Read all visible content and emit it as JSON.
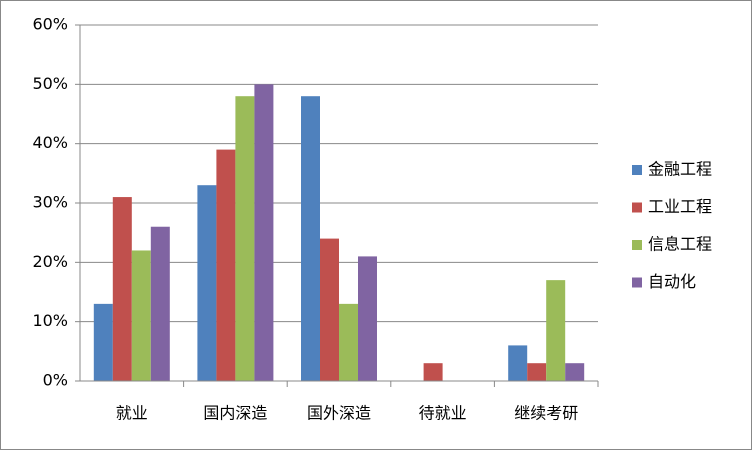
{
  "chart_data": {
    "type": "bar",
    "categories": [
      "就业",
      "国内深造",
      "国外深造",
      "待就业",
      "继续考研"
    ],
    "series": [
      {
        "name": "金融工程",
        "color": "#4f81bd",
        "values": [
          13,
          33,
          48,
          0,
          6
        ]
      },
      {
        "name": "工业工程",
        "color": "#c0504d",
        "values": [
          31,
          39,
          24,
          3,
          3
        ]
      },
      {
        "name": "信息工程",
        "color": "#9bbb59",
        "values": [
          22,
          48,
          13,
          0,
          17
        ]
      },
      {
        "name": "自动化",
        "color": "#8064a2",
        "values": [
          26,
          50,
          21,
          0,
          3
        ]
      }
    ],
    "ylim": [
      0,
      60
    ],
    "yticks": [
      {
        "value": 0,
        "label": "0%"
      },
      {
        "value": 10,
        "label": "10%"
      },
      {
        "value": 20,
        "label": "20%"
      },
      {
        "value": 30,
        "label": "30%"
      },
      {
        "value": 40,
        "label": "40%"
      },
      {
        "value": 50,
        "label": "50%"
      },
      {
        "value": 60,
        "label": "60%"
      }
    ],
    "grid": true,
    "legend": "right"
  }
}
